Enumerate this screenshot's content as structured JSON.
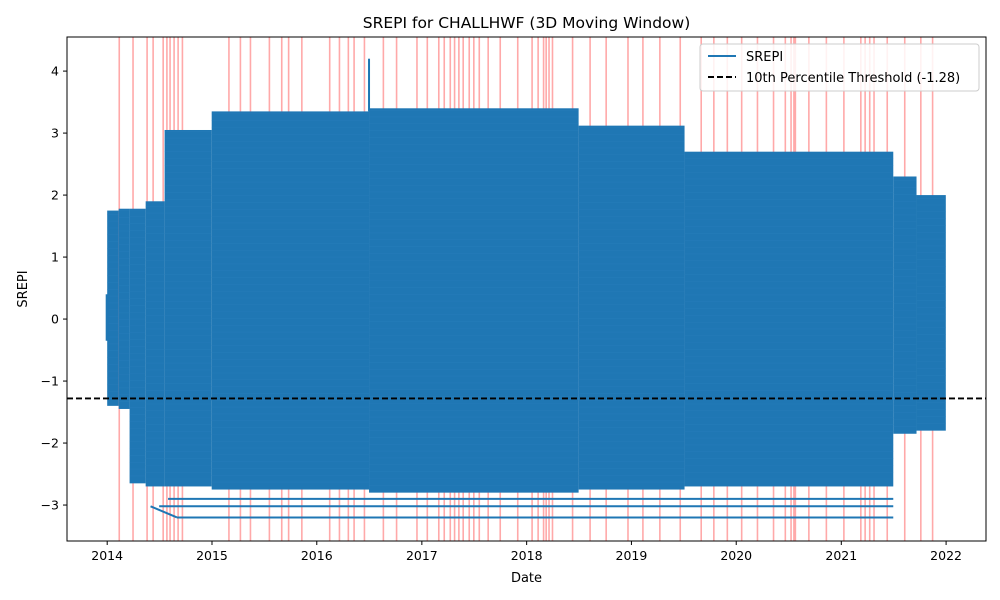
{
  "chart_data": {
    "type": "line",
    "title": "SREPI for CHALLHWF (3D Moving Window)",
    "xlabel": "Date",
    "ylabel": "SREPI",
    "xlim": [
      "2013-08-14",
      "2022-05-20"
    ],
    "ylim": [
      -3.58,
      4.55
    ],
    "x_ticks": [
      "2014",
      "2015",
      "2016",
      "2017",
      "2018",
      "2019",
      "2020",
      "2021",
      "2022"
    ],
    "y_ticks": [
      4,
      3,
      2,
      1,
      0,
      -1,
      -2,
      -3
    ],
    "y_tick_labels": [
      "4",
      "3",
      "2",
      "1",
      "0",
      "−1",
      "−2",
      "−3"
    ],
    "grid": false,
    "legend": {
      "placement": "top-right",
      "entries": [
        "SREPI",
        "10th Percentile Threshold (-1.28)"
      ]
    },
    "threshold": {
      "value": -1.28,
      "style": "dashed",
      "color": "#000000"
    },
    "colors": {
      "series": "#1f77b4",
      "drought_band": "#ff9a9a",
      "threshold": "#000000"
    },
    "series": [
      {
        "name": "SREPI",
        "blocks": [
          {
            "start": "2014-01-01",
            "end": "2014-02-10",
            "min": -1.4,
            "max": 1.75
          },
          {
            "start": "2014-02-10",
            "end": "2014-03-20",
            "min": -1.45,
            "max": 1.78
          },
          {
            "start": "2014-03-20",
            "end": "2014-05-15",
            "min": -2.65,
            "max": 1.78
          },
          {
            "start": "2014-05-15",
            "end": "2014-07-20",
            "min": -2.7,
            "max": 1.9
          },
          {
            "start": "2014-07-20",
            "end": "2014-12-31",
            "min": -2.7,
            "max": 3.05
          },
          {
            "start": "2014-12-31",
            "end": "2016-07-01",
            "min": -2.75,
            "max": 3.35
          },
          {
            "start": "2016-07-01",
            "end": "2018-07-01",
            "min": -2.8,
            "max": 3.4
          },
          {
            "start": "2018-07-01",
            "end": "2019-07-05",
            "min": -2.75,
            "max": 3.12
          },
          {
            "start": "2019-07-05",
            "end": "2021-07-01",
            "min": -2.7,
            "max": 2.7
          },
          {
            "start": "2021-07-01",
            "end": "2021-09-20",
            "min": -1.85,
            "max": 2.3
          },
          {
            "start": "2021-09-20",
            "end": "2021-12-31",
            "min": -1.8,
            "max": 2.0
          }
        ],
        "spike": {
          "date": "2016-07-01",
          "value": 4.2
        },
        "lower_lines": [
          {
            "start": "2014-08-01",
            "end": "2021-07-01",
            "value": -2.9
          },
          {
            "start": "2014-07-01",
            "end": "2021-07-01",
            "value": -3.02
          },
          {
            "start": "2014-09-01",
            "end": "2021-07-01",
            "value": -3.2
          }
        ],
        "low_point": {
          "date": "2014-06-01",
          "value": -3.02
        }
      }
    ],
    "drought_dates": [
      "2014-02-12",
      "2014-04-01",
      "2014-05-20",
      "2014-06-10",
      "2014-07-15",
      "2014-07-28",
      "2014-08-08",
      "2014-08-22",
      "2014-09-05",
      "2014-09-20",
      "2015-03-01",
      "2015-04-10",
      "2015-05-15",
      "2015-07-20",
      "2015-09-01",
      "2015-09-25",
      "2015-11-10",
      "2016-02-15",
      "2016-03-20",
      "2016-04-20",
      "2016-05-10",
      "2016-06-15",
      "2016-08-20",
      "2016-10-05",
      "2016-12-15",
      "2017-01-20",
      "2017-03-01",
      "2017-03-20",
      "2017-04-10",
      "2017-04-25",
      "2017-05-10",
      "2017-05-25",
      "2017-06-15",
      "2017-07-01",
      "2017-07-20",
      "2017-08-20",
      "2017-10-01",
      "2017-12-01",
      "2018-01-20",
      "2018-02-10",
      "2018-03-01",
      "2018-03-10",
      "2018-03-20",
      "2018-04-01",
      "2018-06-10",
      "2018-08-10",
      "2018-10-05",
      "2018-12-20",
      "2019-02-10",
      "2019-04-10",
      "2019-06-20",
      "2019-09-01",
      "2019-10-15",
      "2019-12-01",
      "2020-01-20",
      "2020-03-15",
      "2020-05-10",
      "2020-06-20",
      "2020-07-10",
      "2020-07-20",
      "2020-07-25",
      "2020-09-10",
      "2020-11-10",
      "2021-01-10",
      "2021-03-10",
      "2021-03-25",
      "2021-04-10",
      "2021-04-25",
      "2021-06-10",
      "2021-08-10",
      "2021-10-05",
      "2021-11-15"
    ]
  }
}
